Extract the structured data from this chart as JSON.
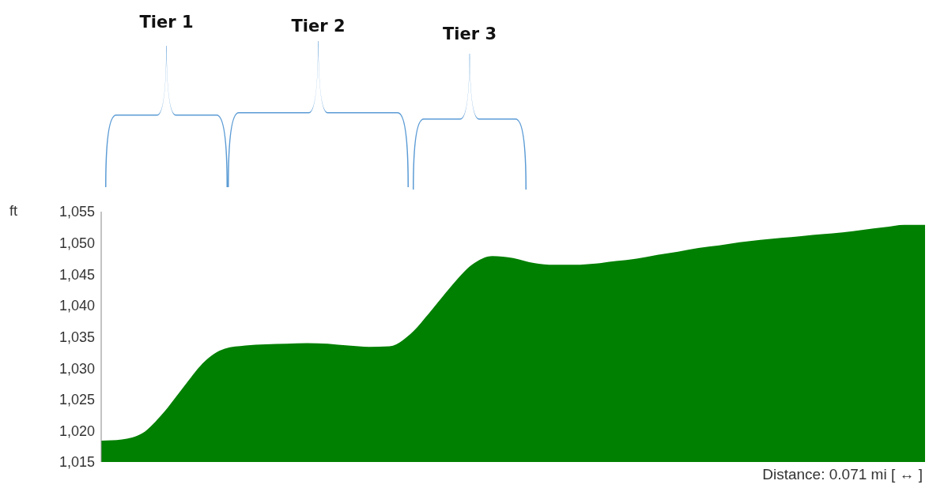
{
  "chart_data": {
    "type": "area",
    "ylabel": "ft",
    "annotations": [
      "Tier 1",
      "Tier 2",
      "Tier 3",
      "Distance: 0.071 mi [ ↔ ]"
    ],
    "categories": [
      null,
      null,
      null,
      null,
      null,
      null,
      null,
      null,
      null,
      null,
      null,
      null,
      null,
      null,
      null,
      null,
      null,
      null,
      null,
      null,
      null,
      null,
      null,
      null,
      null,
      null,
      null,
      null,
      null,
      null,
      null,
      null,
      null,
      null,
      null,
      null,
      null,
      null,
      null,
      null,
      null
    ],
    "values": [
      1018.4,
      1018.6,
      1019.6,
      1022.8,
      1027,
      1031,
      1033.1,
      1033.6,
      1033.8,
      1033.9,
      1034,
      1033.9,
      1033.6,
      1033.4,
      1033.5,
      1035.4,
      1039.1,
      1043.1,
      1046.5,
      1047.9,
      1047.6,
      1046.8,
      1046.5,
      1046.5,
      1046.7,
      1047.1,
      1047.5,
      1048.1,
      1048.6,
      1049.2,
      1049.6,
      1050.1,
      1050.5,
      1050.8,
      1051.1,
      1051.4,
      1051.7,
      1052.1,
      1052.5,
      1052.9,
      1052.9
    ],
    "color": "#008000",
    "ylim": [
      1015,
      1055
    ],
    "yticks": [
      {
        "value": 1015,
        "label": "1,015"
      },
      {
        "value": 1020,
        "label": "1,020"
      },
      {
        "value": 1025,
        "label": "1,025"
      },
      {
        "value": 1030,
        "label": "1,030"
      },
      {
        "value": 1035,
        "label": "1,035"
      },
      {
        "value": 1040,
        "label": "1,040"
      },
      {
        "value": 1045,
        "label": "1,045"
      },
      {
        "value": 1050,
        "label": "1,050"
      },
      {
        "value": 1055,
        "label": "1,055"
      }
    ],
    "grid": false,
    "tick_labels": "y"
  }
}
